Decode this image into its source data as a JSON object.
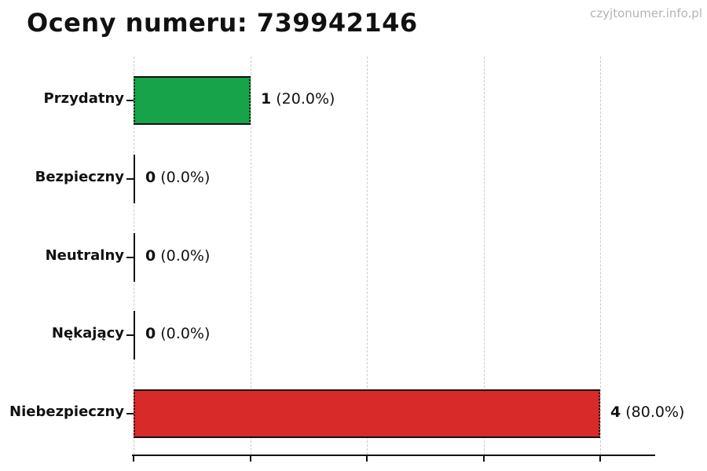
{
  "page": {
    "title": "Oceny numeru: 739942146",
    "watermark": "czyjtonumer.info.pl"
  },
  "chart_data": {
    "type": "bar",
    "orientation": "horizontal",
    "title": "Oceny numeru: 739942146",
    "categories": [
      "Przydatny",
      "Bezpieczny",
      "Neutralny",
      "Nękający",
      "Niebezpieczny"
    ],
    "values": [
      1,
      0,
      0,
      0,
      4
    ],
    "counts": [
      "1",
      "0",
      "0",
      "0",
      "4"
    ],
    "percent_labels": [
      "(20.0%)",
      "(0.0%)",
      "(0.0%)",
      "(0.0%)",
      "(80.0%)"
    ],
    "bar_colors": [
      "#17a34a",
      "",
      "",
      "",
      "#d92a2a"
    ],
    "bar_edge_color": "#111111",
    "xlabel": "",
    "ylabel": "",
    "xlim": [
      0,
      4.47
    ],
    "gridline_values": [
      0,
      1,
      2,
      3,
      4
    ],
    "grid": "vertical-dashed",
    "legend": false
  }
}
